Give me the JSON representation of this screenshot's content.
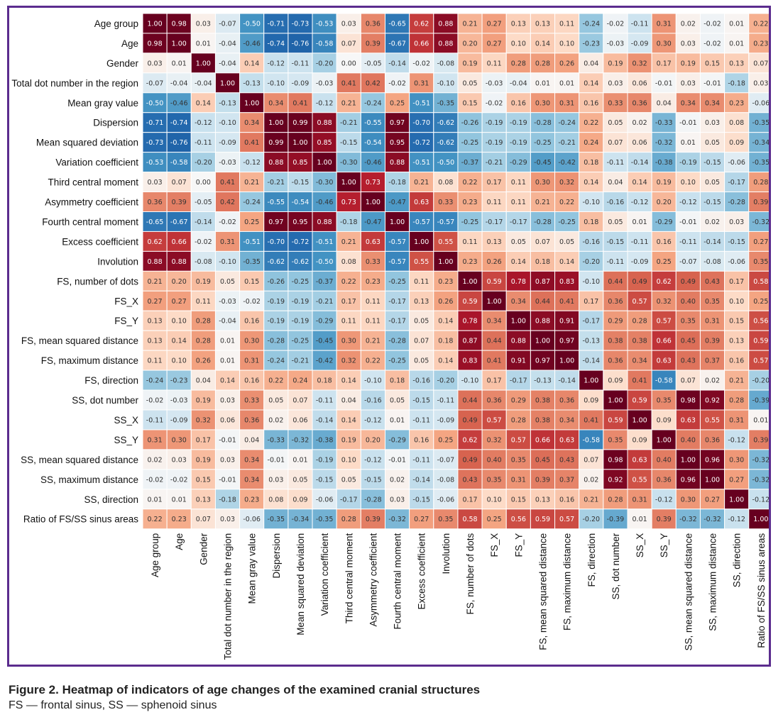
{
  "caption": {
    "title": "Figure 2. Heatmap of indicators of age changes of the examined cranial structures",
    "note": "FS — frontal sinus, SS — sphenoid sinus"
  },
  "colors": {
    "frame": "#5b2c8e",
    "negative": "#2166ac",
    "neutral": "#f7f7f7",
    "positive": "#67001f"
  },
  "chart_data": {
    "type": "heatmap",
    "title": "",
    "value_range": [
      -1,
      1
    ],
    "labels": [
      "Age group",
      "Age",
      "Gender",
      "Total dot number in the region",
      "Mean gray value",
      "Dispersion",
      "Mean squared deviation",
      "Variation coefficient",
      "Third central moment",
      "Asymmetry coefficient",
      "Fourth central moment",
      "Excess coefficient",
      "Involution",
      "FS, number of dots",
      "FS_X",
      "FS_Y",
      "FS, mean squared distance",
      "FS, maximum distance",
      "FS, direction",
      "SS, dot number",
      "SS_X",
      "SS_Y",
      "SS, mean squared distance",
      "SS, maximum distance",
      "SS, direction",
      "Ratio of FS/SS sinus areas"
    ],
    "values": [
      [
        1.0,
        0.98,
        0.03,
        -0.07,
        -0.5,
        -0.71,
        -0.73,
        -0.53,
        0.03,
        0.36,
        -0.65,
        0.62,
        0.88,
        0.21,
        0.27,
        0.13,
        0.13,
        0.11,
        -0.24,
        -0.02,
        -0.11,
        0.31,
        0.02,
        -0.02,
        0.01,
        0.22
      ],
      [
        0.98,
        1.0,
        0.01,
        -0.04,
        -0.46,
        -0.74,
        -0.76,
        -0.58,
        0.07,
        0.39,
        -0.67,
        0.66,
        0.88,
        0.2,
        0.27,
        0.1,
        0.14,
        0.1,
        -0.23,
        -0.03,
        -0.09,
        0.3,
        0.03,
        -0.02,
        0.01,
        0.23
      ],
      [
        0.03,
        0.01,
        1.0,
        -0.04,
        0.14,
        -0.12,
        -0.11,
        -0.2,
        0.0,
        -0.05,
        -0.14,
        -0.02,
        -0.08,
        0.19,
        0.11,
        0.28,
        0.28,
        0.26,
        0.04,
        0.19,
        0.32,
        0.17,
        0.19,
        0.15,
        0.13,
        0.07
      ],
      [
        -0.07,
        -0.04,
        -0.04,
        1.0,
        -0.13,
        -0.1,
        -0.09,
        -0.03,
        0.41,
        0.42,
        -0.02,
        0.31,
        -0.1,
        0.05,
        -0.03,
        -0.04,
        0.01,
        0.01,
        0.14,
        0.03,
        0.06,
        -0.01,
        0.03,
        -0.01,
        -0.18,
        0.03
      ],
      [
        -0.5,
        -0.46,
        0.14,
        -0.13,
        1.0,
        0.34,
        0.41,
        -0.12,
        0.21,
        -0.24,
        0.25,
        -0.51,
        -0.35,
        0.15,
        -0.02,
        0.16,
        0.3,
        0.31,
        0.16,
        0.33,
        0.36,
        0.04,
        0.34,
        0.34,
        0.23,
        -0.06
      ],
      [
        -0.71,
        -0.74,
        -0.12,
        -0.1,
        0.34,
        1.0,
        0.99,
        0.88,
        -0.21,
        -0.55,
        0.97,
        -0.7,
        -0.62,
        -0.26,
        -0.19,
        -0.19,
        -0.28,
        -0.24,
        0.22,
        0.05,
        0.02,
        -0.33,
        -0.01,
        0.03,
        0.08,
        -0.35
      ],
      [
        -0.73,
        -0.76,
        -0.11,
        -0.09,
        0.41,
        0.99,
        1.0,
        0.85,
        -0.15,
        -0.54,
        0.95,
        -0.72,
        -0.62,
        -0.25,
        -0.19,
        -0.19,
        -0.25,
        -0.21,
        0.24,
        0.07,
        0.06,
        -0.32,
        0.01,
        0.05,
        0.09,
        -0.34
      ],
      [
        -0.53,
        -0.58,
        -0.2,
        -0.03,
        -0.12,
        0.88,
        0.85,
        1.0,
        -0.3,
        -0.46,
        0.88,
        -0.51,
        -0.5,
        -0.37,
        -0.21,
        -0.29,
        -0.45,
        -0.42,
        0.18,
        -0.11,
        -0.14,
        -0.38,
        -0.19,
        -0.15,
        -0.06,
        -0.35
      ],
      [
        0.03,
        0.07,
        0.0,
        0.41,
        0.21,
        -0.21,
        -0.15,
        -0.3,
        1.0,
        0.73,
        -0.18,
        0.21,
        0.08,
        0.22,
        0.17,
        0.11,
        0.3,
        0.32,
        0.14,
        0.04,
        0.14,
        0.19,
        0.1,
        0.05,
        -0.17,
        0.28
      ],
      [
        0.36,
        0.39,
        -0.05,
        0.42,
        -0.24,
        -0.55,
        -0.54,
        -0.46,
        0.73,
        1.0,
        -0.47,
        0.63,
        0.33,
        0.23,
        0.11,
        0.11,
        0.21,
        0.22,
        -0.1,
        -0.16,
        -0.12,
        0.2,
        -0.12,
        -0.15,
        -0.28,
        0.39
      ],
      [
        -0.65,
        -0.67,
        -0.14,
        -0.02,
        0.25,
        0.97,
        0.95,
        0.88,
        -0.18,
        -0.47,
        1.0,
        -0.57,
        -0.57,
        -0.25,
        -0.17,
        -0.17,
        -0.28,
        -0.25,
        0.18,
        0.05,
        0.01,
        -0.29,
        -0.01,
        0.02,
        0.03,
        -0.32
      ],
      [
        0.62,
        0.66,
        -0.02,
        0.31,
        -0.51,
        -0.7,
        -0.72,
        -0.51,
        0.21,
        0.63,
        -0.57,
        1.0,
        0.55,
        0.11,
        0.13,
        0.05,
        0.07,
        0.05,
        -0.16,
        -0.15,
        -0.11,
        0.16,
        -0.11,
        -0.14,
        -0.15,
        0.27
      ],
      [
        0.88,
        0.88,
        -0.08,
        -0.1,
        -0.35,
        -0.62,
        -0.62,
        -0.5,
        0.08,
        0.33,
        -0.57,
        0.55,
        1.0,
        0.23,
        0.26,
        0.14,
        0.18,
        0.14,
        -0.2,
        -0.11,
        -0.09,
        0.25,
        -0.07,
        -0.08,
        -0.06,
        0.35
      ],
      [
        0.21,
        0.2,
        0.19,
        0.05,
        0.15,
        -0.26,
        -0.25,
        -0.37,
        0.22,
        0.23,
        -0.25,
        0.11,
        0.23,
        1.0,
        0.59,
        0.78,
        0.87,
        0.83,
        -0.1,
        0.44,
        0.49,
        0.62,
        0.49,
        0.43,
        0.17,
        0.58
      ],
      [
        0.27,
        0.27,
        0.11,
        -0.03,
        -0.02,
        -0.19,
        -0.19,
        -0.21,
        0.17,
        0.11,
        -0.17,
        0.13,
        0.26,
        0.59,
        1.0,
        0.34,
        0.44,
        0.41,
        0.17,
        0.36,
        0.57,
        0.32,
        0.4,
        0.35,
        0.1,
        0.25
      ],
      [
        0.13,
        0.1,
        0.28,
        -0.04,
        0.16,
        -0.19,
        -0.19,
        -0.29,
        0.11,
        0.11,
        -0.17,
        0.05,
        0.14,
        0.78,
        0.34,
        1.0,
        0.88,
        0.91,
        -0.17,
        0.29,
        0.28,
        0.57,
        0.35,
        0.31,
        0.15,
        0.56
      ],
      [
        0.13,
        0.14,
        0.28,
        0.01,
        0.3,
        -0.28,
        -0.25,
        -0.45,
        0.3,
        0.21,
        -0.28,
        0.07,
        0.18,
        0.87,
        0.44,
        0.88,
        1.0,
        0.97,
        -0.13,
        0.38,
        0.38,
        0.66,
        0.45,
        0.39,
        0.13,
        0.59
      ],
      [
        0.11,
        0.1,
        0.26,
        0.01,
        0.31,
        -0.24,
        -0.21,
        -0.42,
        0.32,
        0.22,
        -0.25,
        0.05,
        0.14,
        0.83,
        0.41,
        0.91,
        0.97,
        1.0,
        -0.14,
        0.36,
        0.34,
        0.63,
        0.43,
        0.37,
        0.16,
        0.57
      ],
      [
        -0.24,
        -0.23,
        0.04,
        0.14,
        0.16,
        0.22,
        0.24,
        0.18,
        0.14,
        -0.1,
        0.18,
        -0.16,
        -0.2,
        -0.1,
        0.17,
        -0.17,
        -0.13,
        -0.14,
        1.0,
        0.09,
        0.41,
        -0.58,
        0.07,
        0.02,
        0.21,
        -0.2
      ],
      [
        -0.02,
        -0.03,
        0.19,
        0.03,
        0.33,
        0.05,
        0.07,
        -0.11,
        0.04,
        -0.16,
        0.05,
        -0.15,
        -0.11,
        0.44,
        0.36,
        0.29,
        0.38,
        0.36,
        0.09,
        1.0,
        0.59,
        0.35,
        0.98,
        0.92,
        0.28,
        -0.39
      ],
      [
        -0.11,
        -0.09,
        0.32,
        0.06,
        0.36,
        0.02,
        0.06,
        -0.14,
        0.14,
        -0.12,
        0.01,
        -0.11,
        -0.09,
        0.49,
        0.57,
        0.28,
        0.38,
        0.34,
        0.41,
        0.59,
        1.0,
        0.09,
        0.63,
        0.55,
        0.31,
        0.01
      ],
      [
        0.31,
        0.3,
        0.17,
        -0.01,
        0.04,
        -0.33,
        -0.32,
        -0.38,
        0.19,
        0.2,
        -0.29,
        0.16,
        0.25,
        0.62,
        0.32,
        0.57,
        0.66,
        0.63,
        -0.58,
        0.35,
        0.09,
        1.0,
        0.4,
        0.36,
        -0.12,
        0.39
      ],
      [
        0.02,
        0.03,
        0.19,
        0.03,
        0.34,
        -0.01,
        0.01,
        -0.19,
        0.1,
        -0.12,
        -0.01,
        -0.11,
        -0.07,
        0.49,
        0.4,
        0.35,
        0.45,
        0.43,
        0.07,
        0.98,
        0.63,
        0.4,
        1.0,
        0.96,
        0.3,
        -0.32
      ],
      [
        -0.02,
        -0.02,
        0.15,
        -0.01,
        0.34,
        0.03,
        0.05,
        -0.15,
        0.05,
        -0.15,
        0.02,
        -0.14,
        -0.08,
        0.43,
        0.35,
        0.31,
        0.39,
        0.37,
        0.02,
        0.92,
        0.55,
        0.36,
        0.96,
        1.0,
        0.27,
        -0.32
      ],
      [
        0.01,
        0.01,
        0.13,
        -0.18,
        0.23,
        0.08,
        0.09,
        -0.06,
        -0.17,
        -0.28,
        0.03,
        -0.15,
        -0.06,
        0.17,
        0.1,
        0.15,
        0.13,
        0.16,
        0.21,
        0.28,
        0.31,
        -0.12,
        0.3,
        0.27,
        1.0,
        -0.12
      ],
      [
        0.22,
        0.23,
        0.07,
        0.03,
        -0.06,
        -0.35,
        -0.34,
        -0.35,
        0.28,
        0.39,
        -0.32,
        0.27,
        0.35,
        0.58,
        0.25,
        0.56,
        0.59,
        0.57,
        -0.2,
        -0.39,
        0.01,
        0.39,
        -0.32,
        -0.32,
        -0.12,
        1.0
      ]
    ]
  }
}
